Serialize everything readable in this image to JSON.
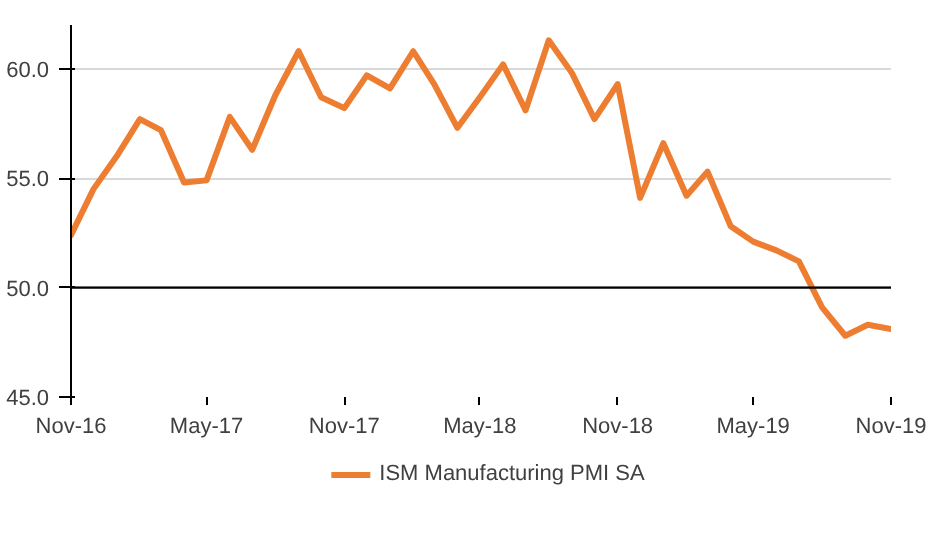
{
  "chart_data": {
    "type": "line",
    "x": [
      "2016-11",
      "2016-12",
      "2017-01",
      "2017-02",
      "2017-03",
      "2017-04",
      "2017-05",
      "2017-06",
      "2017-07",
      "2017-08",
      "2017-09",
      "2017-10",
      "2017-11",
      "2017-12",
      "2018-01",
      "2018-02",
      "2018-03",
      "2018-04",
      "2018-05",
      "2018-06",
      "2018-07",
      "2018-08",
      "2018-09",
      "2018-10",
      "2018-11",
      "2018-12",
      "2019-01",
      "2019-02",
      "2019-03",
      "2019-04",
      "2019-05",
      "2019-06",
      "2019-07",
      "2019-08",
      "2019-09",
      "2019-10",
      "2019-11"
    ],
    "series": [
      {
        "name": "ISM Manufacturing PMI SA",
        "color": "#ed7d31",
        "values": [
          52.4,
          54.5,
          56.0,
          57.7,
          57.2,
          54.8,
          54.9,
          57.8,
          56.3,
          58.8,
          60.8,
          58.7,
          58.2,
          59.7,
          59.1,
          60.8,
          59.3,
          57.3,
          58.7,
          60.2,
          58.1,
          61.3,
          59.8,
          57.7,
          59.3,
          54.1,
          56.6,
          54.2,
          55.3,
          52.8,
          52.1,
          51.7,
          51.2,
          49.1,
          47.8,
          48.3,
          48.1
        ]
      }
    ],
    "ylim": [
      45,
      62
    ],
    "yticks": [
      {
        "value": 45,
        "label": "45.0"
      },
      {
        "value": 50,
        "label": "50.0"
      },
      {
        "value": 55,
        "label": "55.0"
      },
      {
        "value": 60,
        "label": "60.0"
      }
    ],
    "xlim": [
      "2016-11",
      "2019-11"
    ],
    "xticks": [
      {
        "value": "2016-11",
        "label": "Nov-16"
      },
      {
        "value": "2017-05",
        "label": "May-17"
      },
      {
        "value": "2017-11",
        "label": "Nov-17"
      },
      {
        "value": "2018-05",
        "label": "May-18"
      },
      {
        "value": "2018-11",
        "label": "Nov-18"
      },
      {
        "value": "2019-05",
        "label": "May-19"
      },
      {
        "value": "2019-11",
        "label": "Nov-19"
      }
    ],
    "ref_lines": [
      {
        "axis": "y",
        "value": 50,
        "label": null,
        "color": "#000000"
      }
    ],
    "grid": "y",
    "legend": "bottom",
    "marker": "none",
    "line_style": "solid"
  }
}
